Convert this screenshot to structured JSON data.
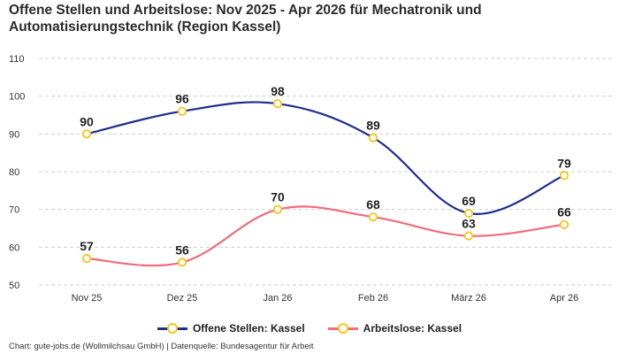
{
  "title": "Offene Stellen und Arbeitslose: Nov 2025 - Apr 2026 für Mechatronik und Automatisierungstechnik (Region Kassel)",
  "footer": "Chart: gute-jobs.de (Wollmilchsau GmbH) | Datenquelle: Bundesagentur für Arbeit",
  "chart_data": {
    "type": "line",
    "title": "Offene Stellen und Arbeitslose: Nov 2025 - Apr 2026 für Mechatronik und Automatisierungstechnik (Region Kassel)",
    "categories": [
      "Nov 25",
      "Dez 25",
      "Jan 26",
      "Feb 26",
      "März 26",
      "Apr 26"
    ],
    "ylim": [
      50,
      110
    ],
    "yticks": [
      50,
      60,
      70,
      80,
      90,
      100,
      110
    ],
    "grid": true,
    "legend_position": "bottom",
    "marker_color": "#f5c518",
    "series": [
      {
        "name": "Offene Stellen: Kassel",
        "color": "#1f2d8c",
        "values": [
          90,
          96,
          98,
          89,
          69,
          79
        ]
      },
      {
        "name": "Arbeitslose: Kassel",
        "color": "#f06b7e",
        "values": [
          57,
          56,
          70,
          68,
          63,
          66
        ]
      }
    ]
  }
}
